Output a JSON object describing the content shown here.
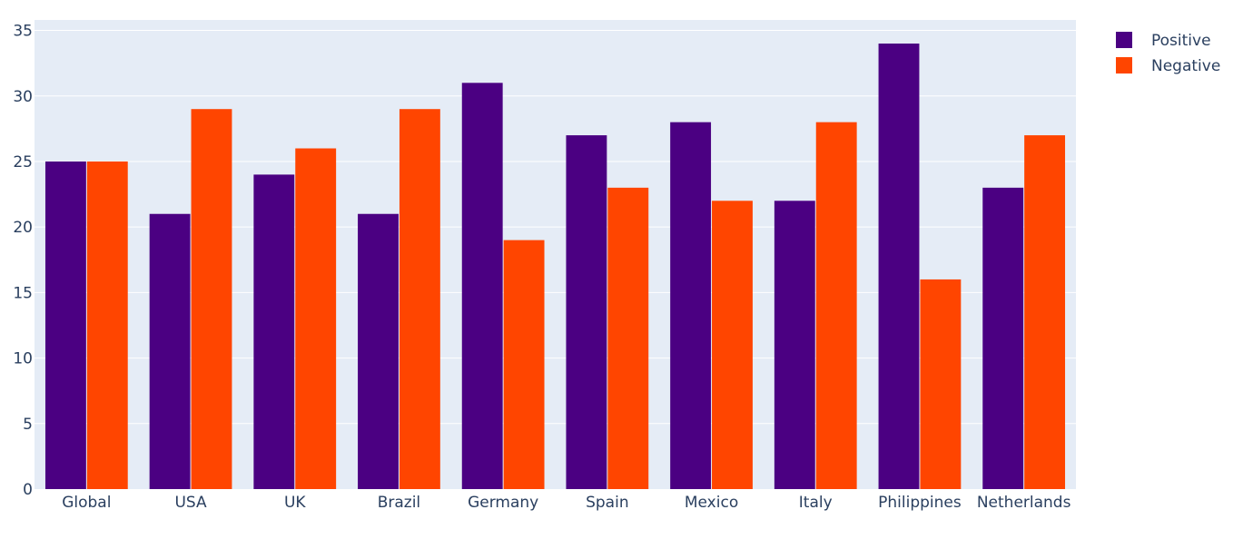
{
  "chart_data": {
    "type": "bar",
    "title": "",
    "xlabel": "",
    "ylabel": "",
    "categories": [
      "Global",
      "USA",
      "UK",
      "Brazil",
      "Germany",
      "Spain",
      "Mexico",
      "Italy",
      "Philippines",
      "Netherlands"
    ],
    "series": [
      {
        "name": "Positive",
        "color": "#4b0082",
        "values": [
          25,
          21,
          24,
          21,
          31,
          27,
          28,
          22,
          34,
          23
        ]
      },
      {
        "name": "Negative",
        "color": "#ff4500",
        "values": [
          25,
          29,
          26,
          29,
          19,
          23,
          22,
          28,
          16,
          27
        ]
      }
    ],
    "ylim": [
      0,
      35.8
    ],
    "yticks": [
      0,
      5,
      10,
      15,
      20,
      25,
      30,
      35
    ],
    "grid": true,
    "legend": "top-right",
    "plot_background": "#e5ecf6",
    "gridline_color": "#ffffff",
    "text_color": "#2a3f5f"
  }
}
